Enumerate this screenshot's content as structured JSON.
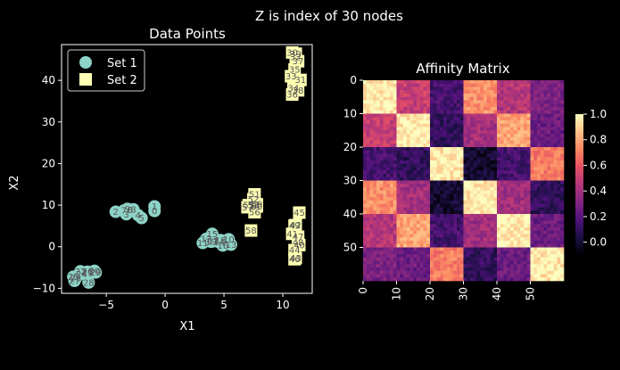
{
  "suptitle": "Z is index of 30 nodes",
  "chart_data": [
    {
      "type": "scatter",
      "title": "Data Points",
      "xlabel": "X1",
      "ylabel": "X2",
      "xlim": [
        -8.8,
        12.5
      ],
      "ylim": [
        -11.2,
        48.6
      ],
      "xticks": [
        -5,
        0,
        5,
        10
      ],
      "yticks": [
        -10,
        0,
        10,
        20,
        30,
        40
      ],
      "legend_position": "upper-left",
      "series": [
        {
          "name": "Set 1",
          "marker": "circle",
          "color": "#8dd3c7",
          "points": [
            {
              "label": "0",
              "x": -0.9,
              "y": 8.6
            },
            {
              "label": "1",
              "x": -0.9,
              "y": 9.7
            },
            {
              "label": "2",
              "x": -4.2,
              "y": 8.4
            },
            {
              "label": "3",
              "x": -3.3,
              "y": 7.8
            },
            {
              "label": "4",
              "x": -2.3,
              "y": 7.6
            },
            {
              "label": "5",
              "x": -2.0,
              "y": 6.9
            },
            {
              "label": "6",
              "x": -3.0,
              "y": 8.8
            },
            {
              "label": "7",
              "x": -3.5,
              "y": 8.7
            },
            {
              "label": "8",
              "x": -2.7,
              "y": 9.0
            },
            {
              "label": "9",
              "x": -3.2,
              "y": 9.1
            },
            {
              "label": "10",
              "x": 5.4,
              "y": 1.8
            },
            {
              "label": "11",
              "x": 3.2,
              "y": 0.9
            },
            {
              "label": "12",
              "x": 3.5,
              "y": 1.9
            },
            {
              "label": "13",
              "x": 5.6,
              "y": 0.5
            },
            {
              "label": "14",
              "x": 4.6,
              "y": 1.1
            },
            {
              "label": "15",
              "x": 4.0,
              "y": 3.1
            },
            {
              "label": "16",
              "x": 4.9,
              "y": 0.3
            },
            {
              "label": "17",
              "x": 4.1,
              "y": 1.3
            },
            {
              "label": "18",
              "x": 4.7,
              "y": 1.6
            },
            {
              "label": "19",
              "x": 3.9,
              "y": 1.2
            },
            {
              "label": "20",
              "x": -6.0,
              "y": -5.8
            },
            {
              "label": "21",
              "x": -6.6,
              "y": -6.3
            },
            {
              "label": "22",
              "x": -7.2,
              "y": -5.9
            },
            {
              "label": "23",
              "x": -7.6,
              "y": -7.6
            },
            {
              "label": "24",
              "x": -7.1,
              "y": -6.6
            },
            {
              "label": "25",
              "x": -7.8,
              "y": -7.2
            },
            {
              "label": "26",
              "x": -6.6,
              "y": -6.0
            },
            {
              "label": "27",
              "x": -7.7,
              "y": -8.2
            },
            {
              "label": "28",
              "x": -6.5,
              "y": -8.6
            },
            {
              "label": "29",
              "x": -5.9,
              "y": -6.2
            }
          ]
        },
        {
          "name": "Set 2",
          "marker": "square",
          "color": "#ffffb3",
          "points": [
            {
              "label": "30",
              "x": 10.8,
              "y": 46.7
            },
            {
              "label": "31",
              "x": 11.5,
              "y": 40.1
            },
            {
              "label": "32",
              "x": 11.1,
              "y": 45.6
            },
            {
              "label": "33",
              "x": 10.7,
              "y": 41.0
            },
            {
              "label": "34",
              "x": 10.9,
              "y": 38.1
            },
            {
              "label": "35",
              "x": 11.0,
              "y": 42.6
            },
            {
              "label": "36",
              "x": 10.8,
              "y": 36.6
            },
            {
              "label": "37",
              "x": 11.3,
              "y": 44.6
            },
            {
              "label": "38",
              "x": 11.3,
              "y": 37.6
            },
            {
              "label": "39",
              "x": 11.1,
              "y": 46.4
            },
            {
              "label": "40",
              "x": 11.4,
              "y": 0.4
            },
            {
              "label": "41",
              "x": 10.8,
              "y": 3.1
            },
            {
              "label": "42",
              "x": 11.1,
              "y": 5.2
            },
            {
              "label": "43",
              "x": 11.1,
              "y": -2.7
            },
            {
              "label": "44",
              "x": 11.0,
              "y": -0.8
            },
            {
              "label": "45",
              "x": 11.4,
              "y": 8.2
            },
            {
              "label": "46",
              "x": 11.0,
              "y": -3.0
            },
            {
              "label": "47",
              "x": 11.3,
              "y": 2.4
            },
            {
              "label": "48",
              "x": 11.3,
              "y": 1.0
            },
            {
              "label": "49",
              "x": 11.0,
              "y": 5.1
            },
            {
              "label": "50",
              "x": 7.8,
              "y": 9.7
            },
            {
              "label": "51",
              "x": 7.6,
              "y": 12.6
            },
            {
              "label": "52",
              "x": 7.5,
              "y": 11.4
            },
            {
              "label": "53",
              "x": 7.5,
              "y": 10.0
            },
            {
              "label": "54",
              "x": 7.6,
              "y": 9.9
            },
            {
              "label": "55",
              "x": 7.1,
              "y": 10.0
            },
            {
              "label": "56",
              "x": 7.6,
              "y": 8.3
            },
            {
              "label": "57",
              "x": 7.0,
              "y": 9.5
            },
            {
              "label": "58",
              "x": 7.3,
              "y": 3.9
            },
            {
              "label": "59",
              "x": 7.8,
              "y": 10.2
            }
          ]
        }
      ]
    },
    {
      "type": "heatmap",
      "title": "Affinity Matrix",
      "colormap": "magma",
      "rows": 60,
      "cols": 60,
      "xticks": [
        0,
        10,
        20,
        30,
        40,
        50
      ],
      "yticks": [
        0,
        10,
        20,
        30,
        40,
        50
      ],
      "colorbar_ticks": [
        0.0,
        0.2,
        0.4,
        0.6,
        0.8,
        1.0
      ],
      "colorbar_range": [
        -0.1,
        1.0
      ],
      "block_size": 10,
      "block_affinity": [
        [
          0.95,
          0.5,
          0.15,
          0.75,
          0.45,
          0.3
        ],
        [
          0.5,
          0.95,
          0.1,
          0.4,
          0.8,
          0.25
        ],
        [
          0.15,
          0.1,
          0.95,
          0.0,
          0.15,
          0.7
        ],
        [
          0.75,
          0.4,
          0.0,
          0.95,
          0.4,
          0.1
        ],
        [
          0.45,
          0.8,
          0.15,
          0.4,
          0.95,
          0.25
        ],
        [
          0.3,
          0.25,
          0.7,
          0.1,
          0.25,
          0.95
        ]
      ]
    }
  ]
}
